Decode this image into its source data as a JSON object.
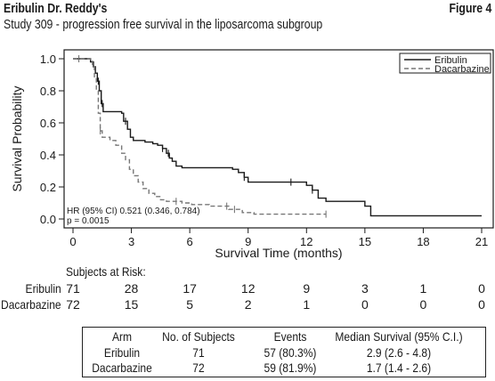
{
  "header": {
    "title": "Eribulin Dr. Reddy's",
    "figure_label": "Figure 4",
    "subtitle": "Study 309 - progression free survival in the liposarcoma subgroup"
  },
  "chart_data": {
    "type": "line",
    "step": true,
    "xlabel": "Survival Time (months)",
    "ylabel": "Survival Probability",
    "xlim": [
      0,
      21
    ],
    "ylim": [
      0,
      1
    ],
    "xticks": [
      "0",
      "3",
      "6",
      "9",
      "12",
      "15",
      "18",
      "21"
    ],
    "yticks": [
      "0.0",
      "0.2",
      "0.4",
      "0.6",
      "0.8",
      "1.0"
    ],
    "grid": false,
    "legend_position": "top-right",
    "annotation_hr": "HR (95% CI) 0.521 (0.346, 0.784)",
    "annotation_p": "p = 0.0015",
    "series": [
      {
        "name": "Eribulin",
        "style": "solid",
        "color": "#1a1a1a",
        "points": [
          [
            0,
            1.0
          ],
          [
            0.6,
            1.0
          ],
          [
            0.9,
            0.98
          ],
          [
            1.05,
            0.95
          ],
          [
            1.15,
            0.91
          ],
          [
            1.25,
            0.86
          ],
          [
            1.35,
            0.8
          ],
          [
            1.45,
            0.72
          ],
          [
            1.55,
            0.67
          ],
          [
            2.5,
            0.66
          ],
          [
            2.6,
            0.61
          ],
          [
            2.8,
            0.56
          ],
          [
            2.95,
            0.51
          ],
          [
            3.1,
            0.49
          ],
          [
            3.7,
            0.48
          ],
          [
            4.1,
            0.47
          ],
          [
            4.35,
            0.46
          ],
          [
            4.6,
            0.44
          ],
          [
            4.8,
            0.41
          ],
          [
            4.95,
            0.38
          ],
          [
            5.1,
            0.36
          ],
          [
            5.3,
            0.33
          ],
          [
            5.6,
            0.32
          ],
          [
            8.2,
            0.31
          ],
          [
            8.5,
            0.29
          ],
          [
            8.8,
            0.26
          ],
          [
            9.0,
            0.23
          ],
          [
            12.0,
            0.21
          ],
          [
            12.3,
            0.18
          ],
          [
            12.6,
            0.13
          ],
          [
            13.0,
            0.11
          ],
          [
            15.0,
            0.08
          ],
          [
            15.3,
            0.02
          ],
          [
            21.0,
            0.02
          ]
        ],
        "censor_x": [
          1.3,
          1.5,
          2.7,
          4.6,
          4.9,
          8.8,
          11.2,
          12.3
        ]
      },
      {
        "name": "Dacarbazine",
        "style": "dashed",
        "color": "#777777",
        "points": [
          [
            0,
            1.0
          ],
          [
            0.9,
            0.99
          ],
          [
            1.0,
            0.95
          ],
          [
            1.1,
            0.88
          ],
          [
            1.2,
            0.8
          ],
          [
            1.3,
            0.66
          ],
          [
            1.4,
            0.55
          ],
          [
            1.5,
            0.51
          ],
          [
            1.9,
            0.49
          ],
          [
            2.2,
            0.46
          ],
          [
            2.5,
            0.41
          ],
          [
            2.7,
            0.37
          ],
          [
            2.9,
            0.31
          ],
          [
            3.1,
            0.27
          ],
          [
            3.35,
            0.23
          ],
          [
            3.6,
            0.19
          ],
          [
            3.9,
            0.16
          ],
          [
            4.2,
            0.14
          ],
          [
            4.5,
            0.12
          ],
          [
            4.8,
            0.11
          ],
          [
            5.6,
            0.1
          ],
          [
            6.1,
            0.09
          ],
          [
            7.0,
            0.08
          ],
          [
            8.0,
            0.06
          ],
          [
            8.7,
            0.04
          ],
          [
            9.3,
            0.03
          ],
          [
            13.0,
            0.03
          ]
        ],
        "censor_x": [
          0.3,
          1.4,
          5.3,
          7.9,
          8.3,
          13.0
        ]
      }
    ]
  },
  "risk": {
    "label": "Subjects at Risk:",
    "rows": [
      {
        "arm": "Eribulin",
        "counts": [
          "71",
          "28",
          "17",
          "12",
          "9",
          "3",
          "1",
          "0"
        ]
      },
      {
        "arm": "Dacarbazine",
        "counts": [
          "72",
          "15",
          "5",
          "2",
          "1",
          "0",
          "0",
          "0"
        ]
      }
    ]
  },
  "summary_table": {
    "headers": [
      "Arm",
      "No. of Subjects",
      "Events",
      "Median Survival (95% C.I.)"
    ],
    "rows": [
      [
        "Eribulin",
        "71",
        "57 (80.3%)",
        "2.9 (2.6 - 4.8)"
      ],
      [
        "Dacarbazine",
        "72",
        "59 (81.9%)",
        "1.7 (1.4 - 2.6)"
      ]
    ]
  }
}
